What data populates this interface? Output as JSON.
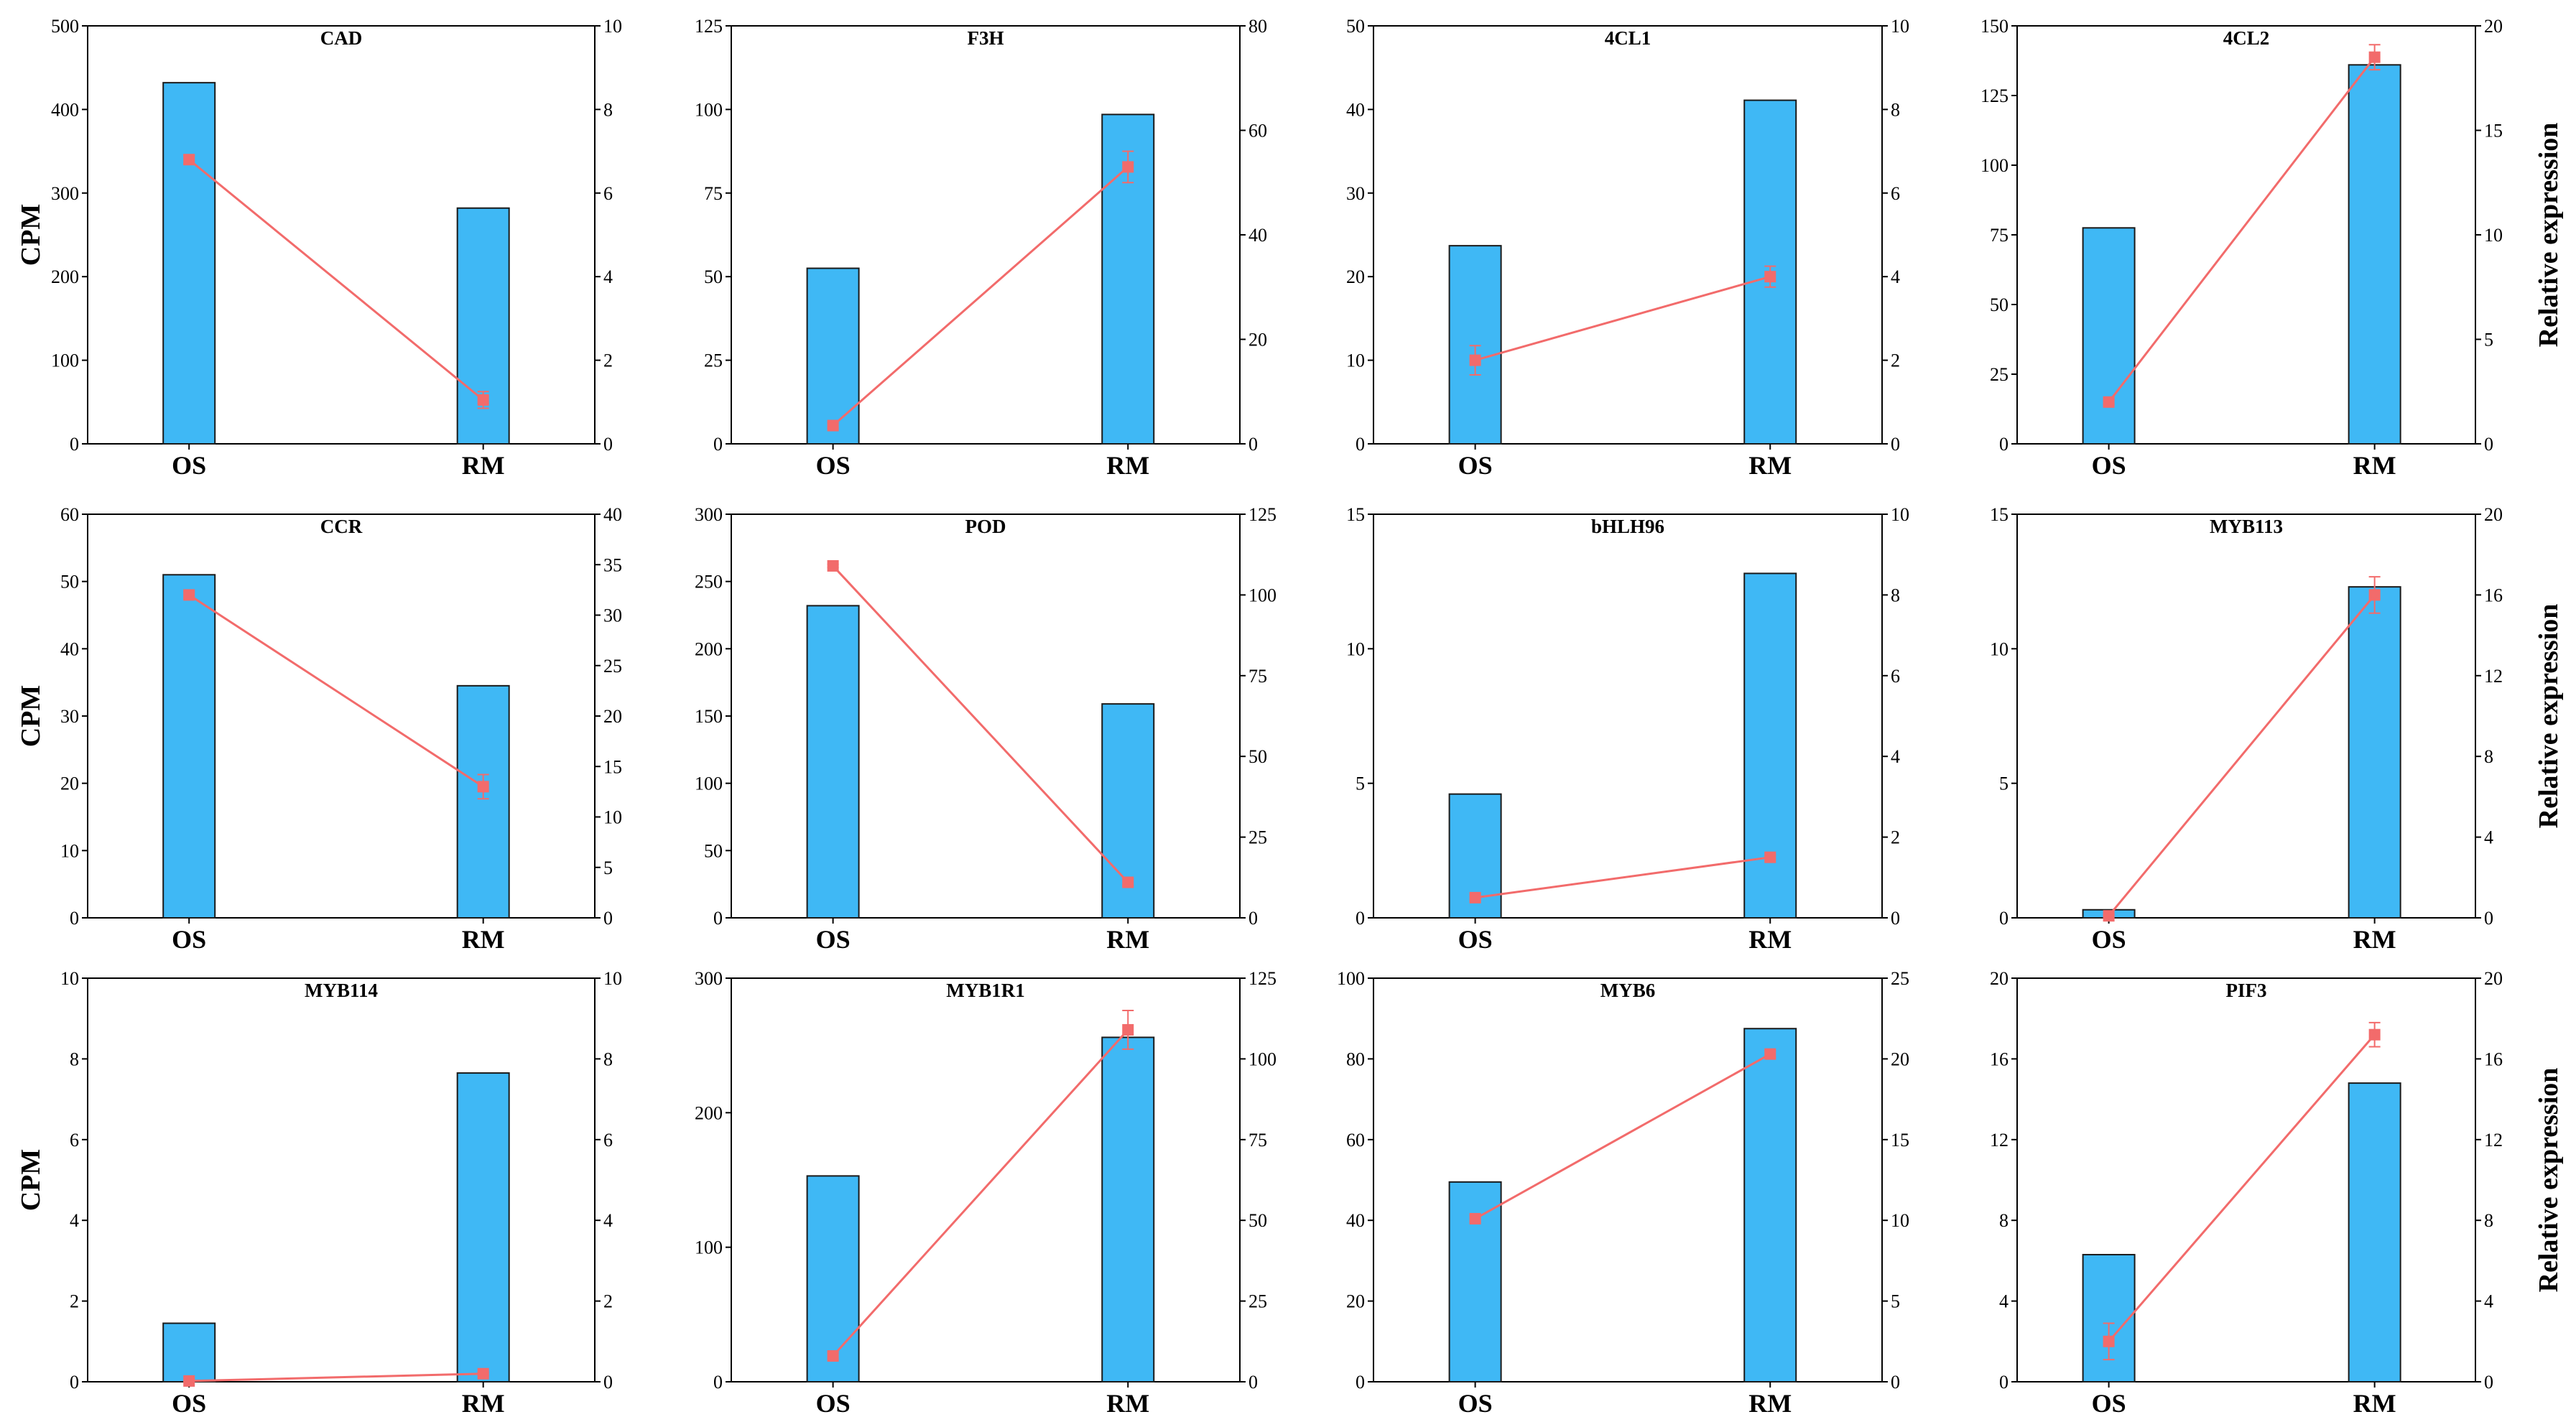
{
  "figure": {
    "left_axis_label": "CPM",
    "right_axis_label": "Relative expression",
    "categories": [
      "OS",
      "RM"
    ],
    "bar_color": "#3FB8F5",
    "line_color": "#F26B6B"
  },
  "chart_data": [
    {
      "type": "bar+line",
      "title": "CAD",
      "categories": [
        "OS",
        "RM"
      ],
      "bar_series": {
        "name": "CPM",
        "values": [
          432,
          282
        ]
      },
      "line_series": {
        "name": "Relative expression",
        "values": [
          6.8,
          1.05
        ],
        "errors": [
          0.1,
          0.2
        ]
      },
      "ylim_left": [
        0,
        500
      ],
      "yticks_left": [
        "0",
        "100",
        "200",
        "300",
        "400",
        "500"
      ],
      "ylim_right": [
        0,
        10
      ],
      "yticks_right": [
        "0",
        "2",
        "4",
        "6",
        "8",
        "10"
      ],
      "show_ylabel_left": true,
      "show_ylabel_right": false
    },
    {
      "type": "bar+line",
      "title": "F3H",
      "categories": [
        "OS",
        "RM"
      ],
      "bar_series": {
        "name": "CPM",
        "values": [
          52.5,
          98.5
        ]
      },
      "line_series": {
        "name": "Relative expression",
        "values": [
          3.5,
          53
        ],
        "errors": [
          0.5,
          3
        ]
      },
      "ylim_left": [
        0,
        125
      ],
      "yticks_left": [
        "0",
        "25",
        "50",
        "75",
        "100",
        "125"
      ],
      "ylim_right": [
        0,
        80
      ],
      "yticks_right": [
        "0",
        "20",
        "40",
        "60",
        "80"
      ],
      "show_ylabel_left": false,
      "show_ylabel_right": false
    },
    {
      "type": "bar+line",
      "title": "4CL1",
      "categories": [
        "OS",
        "RM"
      ],
      "bar_series": {
        "name": "CPM",
        "values": [
          23.7,
          41.1
        ]
      },
      "line_series": {
        "name": "Relative expression",
        "values": [
          2.0,
          4.0
        ],
        "errors": [
          0.35,
          0.25
        ]
      },
      "ylim_left": [
        0,
        50
      ],
      "yticks_left": [
        "0",
        "10",
        "20",
        "30",
        "40",
        "50"
      ],
      "ylim_right": [
        0,
        10
      ],
      "yticks_right": [
        "0",
        "2",
        "4",
        "6",
        "8",
        "10"
      ],
      "show_ylabel_left": false,
      "show_ylabel_right": false
    },
    {
      "type": "bar+line",
      "title": "4CL2",
      "categories": [
        "OS",
        "RM"
      ],
      "bar_series": {
        "name": "CPM",
        "values": [
          77.5,
          136
        ]
      },
      "line_series": {
        "name": "Relative expression",
        "values": [
          2.0,
          18.5
        ],
        "errors": [
          0.1,
          0.6
        ]
      },
      "ylim_left": [
        0,
        150
      ],
      "yticks_left": [
        "0",
        "25",
        "50",
        "75",
        "100",
        "125",
        "150"
      ],
      "ylim_right": [
        0,
        20
      ],
      "yticks_right": [
        "0",
        "5",
        "10",
        "15",
        "20"
      ],
      "show_ylabel_left": false,
      "show_ylabel_right": true
    },
    {
      "type": "bar+line",
      "title": "CCR",
      "categories": [
        "OS",
        "RM"
      ],
      "bar_series": {
        "name": "CPM",
        "values": [
          51,
          34.5
        ]
      },
      "line_series": {
        "name": "Relative expression",
        "values": [
          32,
          13
        ],
        "errors": [
          0.3,
          1.2
        ]
      },
      "ylim_left": [
        0,
        60
      ],
      "yticks_left": [
        "0",
        "10",
        "20",
        "30",
        "40",
        "50",
        "60"
      ],
      "ylim_right": [
        0,
        40
      ],
      "yticks_right": [
        "0",
        "5",
        "10",
        "15",
        "20",
        "25",
        "30",
        "35",
        "40"
      ],
      "show_ylabel_left": true,
      "show_ylabel_right": false
    },
    {
      "type": "bar+line",
      "title": "POD",
      "categories": [
        "OS",
        "RM"
      ],
      "bar_series": {
        "name": "CPM",
        "values": [
          232,
          159
        ]
      },
      "line_series": {
        "name": "Relative expression",
        "values": [
          109,
          11
        ],
        "errors": [
          0.5,
          1
        ]
      },
      "ylim_left": [
        0,
        300
      ],
      "yticks_left": [
        "0",
        "50",
        "100",
        "150",
        "200",
        "250",
        "300"
      ],
      "ylim_right": [
        0,
        125
      ],
      "yticks_right": [
        "0",
        "25",
        "50",
        "75",
        "100",
        "125"
      ],
      "show_ylabel_left": false,
      "show_ylabel_right": false
    },
    {
      "type": "bar+line",
      "title": "bHLH96",
      "categories": [
        "OS",
        "RM"
      ],
      "bar_series": {
        "name": "CPM",
        "values": [
          4.6,
          12.8
        ]
      },
      "line_series": {
        "name": "Relative expression",
        "values": [
          0.5,
          1.5
        ],
        "errors": [
          0.05,
          0.05
        ]
      },
      "ylim_left": [
        0,
        15
      ],
      "yticks_left": [
        "0",
        "5",
        "10",
        "15"
      ],
      "ylim_right": [
        0,
        10
      ],
      "yticks_right": [
        "0",
        "2",
        "4",
        "6",
        "8",
        "10"
      ],
      "show_ylabel_left": false,
      "show_ylabel_right": false
    },
    {
      "type": "bar+line",
      "title": "MYB113",
      "categories": [
        "OS",
        "RM"
      ],
      "bar_series": {
        "name": "CPM",
        "values": [
          0.3,
          12.3
        ]
      },
      "line_series": {
        "name": "Relative expression",
        "values": [
          0.1,
          16
        ],
        "errors": [
          0.05,
          0.9
        ]
      },
      "ylim_left": [
        0,
        15
      ],
      "yticks_left": [
        "0",
        "5",
        "10",
        "15"
      ],
      "ylim_right": [
        0,
        20
      ],
      "yticks_right": [
        "0",
        "4",
        "8",
        "12",
        "16",
        "20"
      ],
      "show_ylabel_left": false,
      "show_ylabel_right": true
    },
    {
      "type": "bar+line",
      "title": "MYB114",
      "categories": [
        "OS",
        "RM"
      ],
      "bar_series": {
        "name": "CPM",
        "values": [
          1.45,
          7.65
        ]
      },
      "line_series": {
        "name": "Relative expression",
        "values": [
          0.02,
          0.2
        ],
        "errors": [
          0.01,
          0.03
        ]
      },
      "ylim_left": [
        0,
        10
      ],
      "yticks_left": [
        "0",
        "2",
        "4",
        "6",
        "8",
        "10"
      ],
      "ylim_right": [
        0,
        10
      ],
      "yticks_right": [
        "0",
        "2",
        "4",
        "6",
        "8",
        "10"
      ],
      "show_ylabel_left": true,
      "show_ylabel_right": false
    },
    {
      "type": "bar+line",
      "title": "MYB1R1",
      "categories": [
        "OS",
        "RM"
      ],
      "bar_series": {
        "name": "CPM",
        "values": [
          153,
          256
        ]
      },
      "line_series": {
        "name": "Relative expression",
        "values": [
          8,
          109
        ],
        "errors": [
          1,
          6
        ]
      },
      "ylim_left": [
        0,
        300
      ],
      "yticks_left": [
        "0",
        "100",
        "200",
        "300"
      ],
      "ylim_right": [
        0,
        125
      ],
      "yticks_right": [
        "0",
        "25",
        "50",
        "75",
        "100",
        "125"
      ],
      "show_ylabel_left": false,
      "show_ylabel_right": false
    },
    {
      "type": "bar+line",
      "title": "MYB6",
      "categories": [
        "OS",
        "RM"
      ],
      "bar_series": {
        "name": "CPM",
        "values": [
          49.5,
          87.5
        ]
      },
      "line_series": {
        "name": "Relative expression",
        "values": [
          10.1,
          20.3
        ],
        "errors": [
          0.2,
          0.2
        ]
      },
      "ylim_left": [
        0,
        100
      ],
      "yticks_left": [
        "0",
        "20",
        "40",
        "60",
        "80",
        "100"
      ],
      "ylim_right": [
        0,
        25
      ],
      "yticks_right": [
        "0",
        "5",
        "10",
        "15",
        "20",
        "25"
      ],
      "show_ylabel_left": false,
      "show_ylabel_right": false
    },
    {
      "type": "bar+line",
      "title": "PIF3",
      "categories": [
        "OS",
        "RM"
      ],
      "bar_series": {
        "name": "CPM",
        "values": [
          6.3,
          14.8
        ]
      },
      "line_series": {
        "name": "Relative expression",
        "values": [
          2.0,
          17.2
        ],
        "errors": [
          0.9,
          0.6
        ]
      },
      "ylim_left": [
        0,
        20
      ],
      "yticks_left": [
        "0",
        "4",
        "8",
        "12",
        "16",
        "20"
      ],
      "ylim_right": [
        0,
        20
      ],
      "yticks_right": [
        "0",
        "4",
        "8",
        "12",
        "16",
        "20"
      ],
      "show_ylabel_left": false,
      "show_ylabel_right": true
    }
  ]
}
